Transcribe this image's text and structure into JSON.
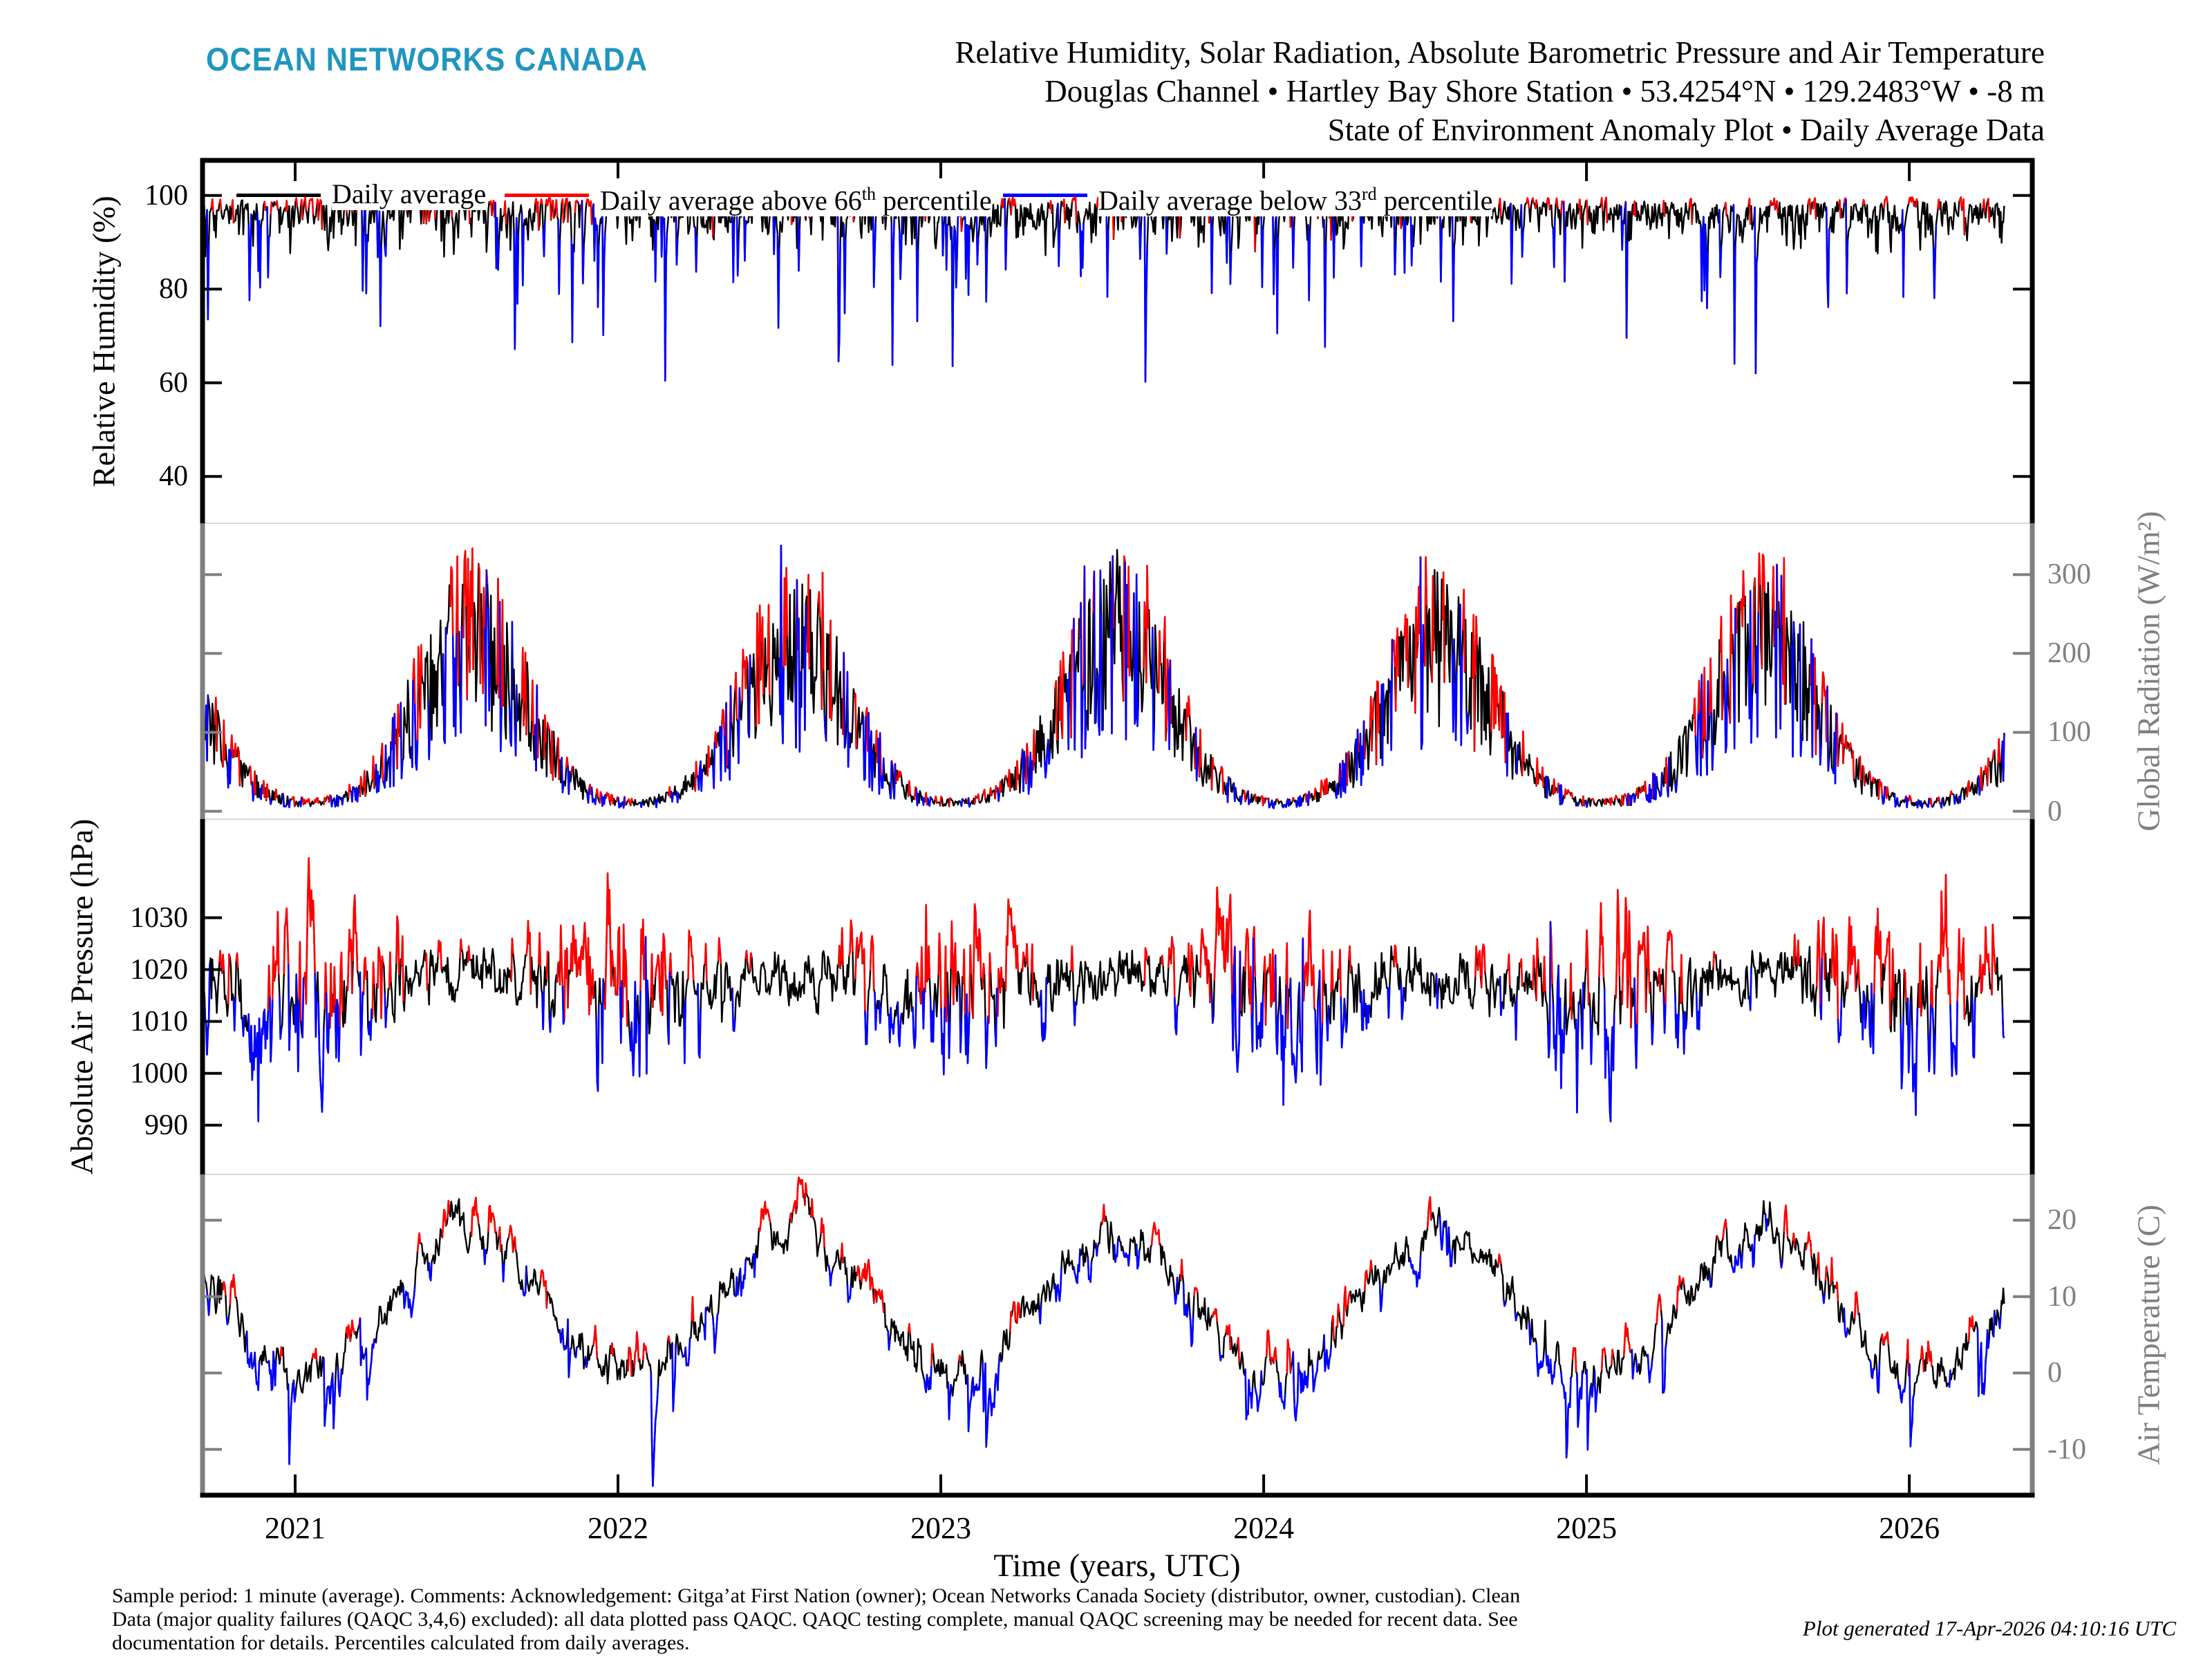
{
  "logo_text": "OCEAN NETWORKS CANADA",
  "brand_color": "#2095c0",
  "title": {
    "line1": "Relative Humidity, Solar Radiation, Absolute Barometric Pressure and Air Temperature",
    "line2": "Douglas Channel • Hartley Bay Shore Station • 53.4254°N • 129.2483°W • -8 m",
    "line3": "State of Environment Anomaly Plot • Daily Average Data"
  },
  "legend": {
    "items": [
      {
        "label_pre": "Daily average",
        "label_sup": "",
        "label_post": "",
        "color": "#000000"
      },
      {
        "label_pre": "Daily average above 66",
        "label_sup": "th",
        "label_post": " percentile",
        "color": "#ff0000"
      },
      {
        "label_pre": "Daily average below 33",
        "label_sup": "rd",
        "label_post": " percentile",
        "color": "#0000ff"
      }
    ]
  },
  "x_axis": {
    "title": "Time (years, UTC)",
    "years": [
      "2021",
      "2022",
      "2023",
      "2024",
      "2025",
      "2026"
    ],
    "t_start": 2020.713,
    "t_end": 2026.381,
    "data_start": 2020.716,
    "data_end": 2026.295
  },
  "footer": {
    "lines": [
      "Sample period: 1 minute (average). Comments: Acknowledgement: Gitga’at First Nation (owner); Ocean Networks Canada Society (distributor, owner, custodian). Clean",
      "Data (major quality failures (QAQC 3,4,6) excluded): all data plotted pass QAQC. QAQC testing complete, manual QAQC screening may be needed for recent data. See",
      "documentation for details. Percentiles calculated from daily averages."
    ],
    "generated": "Plot generated 17-Apr-2026 04:10:16 UTC"
  },
  "chart_data": {
    "type": "line",
    "legend_position": "top-inside",
    "grid": false,
    "series_colors": {
      "normal": "#000000",
      "above_66th": "#ff0000",
      "below_33rd": "#0000ff"
    },
    "boundary_color": "#d9d9d9",
    "panels": [
      {
        "id": "humidity",
        "ylabel": "Relative Humidity (%)",
        "side": "left",
        "axis_color": "#000000",
        "ticks": [
          100,
          80,
          60,
          40
        ],
        "ylim": [
          30,
          107.5
        ],
        "seed": 101,
        "gen": {
          "type": "humidity",
          "base": 100,
          "e_pow": 1.35,
          "e_scale": 3.2,
          "mid_prob": 0.3,
          "mid_max": 7,
          "dip_prob": 0.045,
          "dip_min": 8,
          "dip_max": 26,
          "deep_prob": 0.01,
          "deep_min": 25,
          "deep_max": 57,
          "smooth": 0.3,
          "clip": [
            33,
            100
          ],
          "red_min": 99.0,
          "red_fuzz": 0.6,
          "blue_max": 86.5,
          "blue_fuzz": 2.5
        }
      },
      {
        "id": "radiation",
        "ylabel": "Global Radiation (W/m²)",
        "side": "right",
        "axis_color": "#7f7f7f",
        "ticks": [
          300,
          200,
          100,
          0
        ],
        "ylim": [
          -10,
          365
        ],
        "seed": 202,
        "gen": {
          "type": "radiation",
          "winter_base": 8,
          "peak_frac": 0.545,
          "width": 0.165,
          "amp_year0": 2020,
          "amps": [
            245,
            262,
            250,
            266,
            252,
            258,
            248
          ],
          "m_lo": 0.28,
          "m_span": 0.96,
          "m_pow": 0.8,
          "boost_prob": 0.07,
          "boost": 0.12,
          "min": 1.5,
          "clip_max": 348,
          "red_base": 1.05,
          "red_fuzz": 0.18,
          "blue_base": 0.52,
          "blue_fuzz": 0.18
        }
      },
      {
        "id": "pressure",
        "ylabel": "Absolute Air Pressure (hPa)",
        "side": "left",
        "axis_color": "#000000",
        "ticks": [
          1030,
          1020,
          1010,
          1000,
          990
        ],
        "ylim": [
          980.5,
          1049
        ],
        "seed": 303,
        "gen": {
          "type": "pressure",
          "mean": 1016.4,
          "season_amp": 2.3,
          "season_phase": 0.55,
          "winter_phase": 0.03,
          "sigma_base": 2.6,
          "sigma_winter": 6.0,
          "sigma_pow": 1.4,
          "ar": 0.62,
          "g_scale": 0.85,
          "clip": [
            979.2,
            1041.5
          ],
          "red_base": 4.6,
          "red_fuzz": 2.5,
          "blue_base": 5.4,
          "blue_fuzz": 2.5
        }
      },
      {
        "id": "temperature",
        "ylabel": "Air Temperature (C)",
        "side": "right",
        "axis_color": "#7f7f7f",
        "ticks": [
          20,
          10,
          0,
          -10
        ],
        "ylim": [
          -16,
          26
        ],
        "seed": 404,
        "gen": {
          "type": "temperature",
          "mean": 8.9,
          "amp": 9.1,
          "phase": 0.286,
          "ar": 0.75,
          "sigma": 1.35,
          "cold_prob": 0.022,
          "cold_min": 3.5,
          "cold_span": 6.5,
          "winter_phase": 0.03,
          "winter_gate": 0.55,
          "events": [
            {
              "t": 2021.495,
              "amp": 5.5,
              "width": 0.014
            },
            {
              "t": 2022.575,
              "amp": 4.8,
              "width": 0.016
            },
            {
              "t": 2024.54,
              "amp": 3.2,
              "width": 0.018
            },
            {
              "t": 2025.56,
              "amp": 3.4,
              "width": 0.015
            }
          ],
          "clip": [
            -14.8,
            25.8
          ],
          "red_base": 1.9,
          "red_fuzz": 1.4,
          "blue_base": 1.9,
          "blue_fuzz": 1.4
        }
      }
    ]
  }
}
